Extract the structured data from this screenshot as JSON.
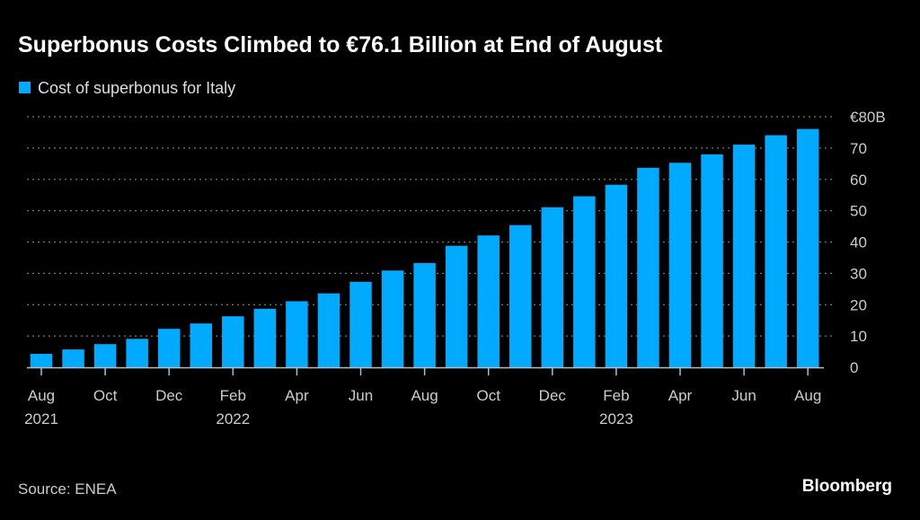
{
  "chart_data": {
    "type": "bar",
    "title": "Superbonus Costs Climbed to €76.1 Billion at End of August",
    "legend": [
      {
        "label": "Cost of superbonus for Italy",
        "color": "#00aaff"
      }
    ],
    "legend_placement": "top-left",
    "xlabel": "",
    "ylabel": "",
    "ylim": [
      0,
      80
    ],
    "yticks": [
      {
        "value": 0,
        "label": "0"
      },
      {
        "value": 10,
        "label": "10"
      },
      {
        "value": 20,
        "label": "20"
      },
      {
        "value": 30,
        "label": "30"
      },
      {
        "value": 40,
        "label": "40"
      },
      {
        "value": 50,
        "label": "50"
      },
      {
        "value": 60,
        "label": "60"
      },
      {
        "value": 70,
        "label": "70"
      },
      {
        "value": 80,
        "label": "€80B"
      }
    ],
    "grid": true,
    "categories": [
      "Aug 2021",
      "Sep 2021",
      "Oct 2021",
      "Nov 2021",
      "Dec 2021",
      "Jan 2022",
      "Feb 2022",
      "Mar 2022",
      "Apr 2022",
      "May 2022",
      "Jun 2022",
      "Jul 2022",
      "Aug 2022",
      "Sep 2022",
      "Oct 2022",
      "Nov 2022",
      "Dec 2022",
      "Jan 2023",
      "Feb 2023",
      "Mar 2023",
      "Apr 2023",
      "May 2023",
      "Jun 2023",
      "Jul 2023",
      "Aug 2023"
    ],
    "values": [
      4.3,
      5.7,
      7.4,
      9.1,
      12.3,
      14.0,
      16.3,
      18.7,
      21.1,
      23.6,
      27.3,
      30.9,
      33.3,
      38.8,
      42.1,
      45.4,
      51.1,
      54.6,
      58.3,
      63.7,
      65.3,
      68.0,
      71.1,
      74.1,
      76.1
    ],
    "xticks": [
      {
        "index": 0,
        "label": "Aug",
        "year": "2021"
      },
      {
        "index": 2,
        "label": "Oct"
      },
      {
        "index": 4,
        "label": "Dec"
      },
      {
        "index": 6,
        "label": "Feb",
        "year": "2022"
      },
      {
        "index": 8,
        "label": "Apr"
      },
      {
        "index": 10,
        "label": "Jun"
      },
      {
        "index": 12,
        "label": "Aug"
      },
      {
        "index": 14,
        "label": "Oct"
      },
      {
        "index": 16,
        "label": "Dec"
      },
      {
        "index": 18,
        "label": "Feb",
        "year": "2023"
      },
      {
        "index": 20,
        "label": "Apr"
      },
      {
        "index": 22,
        "label": "Jun"
      },
      {
        "index": 24,
        "label": "Aug"
      }
    ]
  },
  "footer": {
    "source": "Source: ENEA",
    "brand": "Bloomberg"
  }
}
